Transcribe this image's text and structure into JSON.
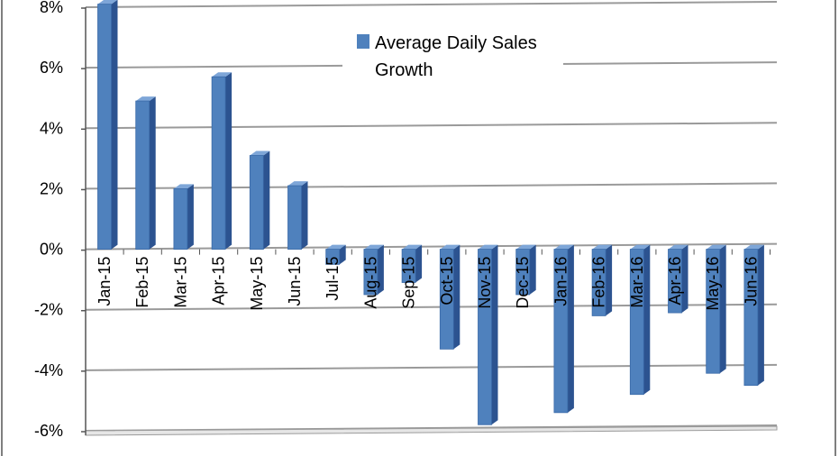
{
  "chart_data": {
    "type": "bar",
    "categories": [
      "Jan-15",
      "Feb-15",
      "Mar-15",
      "Apr-15",
      "May-15",
      "Jun-15",
      "Jul-15",
      "Aug-15",
      "Sep-15",
      "Oct-15",
      "Nov-15",
      "Dec-15",
      "Jan-16",
      "Feb-16",
      "Mar-16",
      "Apr-16",
      "May-16",
      "Jun-16"
    ],
    "series": [
      {
        "name": "Average Daily Sales Growth",
        "values": [
          8.1,
          4.9,
          2.0,
          5.7,
          3.1,
          2.1,
          -0.5,
          -1.5,
          -1.1,
          -3.3,
          -5.8,
          -1.5,
          -5.4,
          -2.2,
          -4.8,
          -2.1,
          -4.1,
          -4.5
        ]
      }
    ],
    "ylim": [
      -6,
      8
    ],
    "yticks": [
      -6,
      -4,
      -2,
      0,
      2,
      4,
      6,
      8
    ],
    "ytick_labels": [
      "-6%",
      "-4%",
      "-2%",
      "0%",
      "2%",
      "4%",
      "6%",
      "8%"
    ],
    "grid": true,
    "legend_position": "top-center",
    "legend_lines": [
      "Average Daily Sales",
      "Growth"
    ],
    "colors": {
      "bar_front": "#4f81bd",
      "bar_side": "#2c5390",
      "bar_top": "#7ea6d8",
      "grid": "#9a9a9a"
    }
  }
}
